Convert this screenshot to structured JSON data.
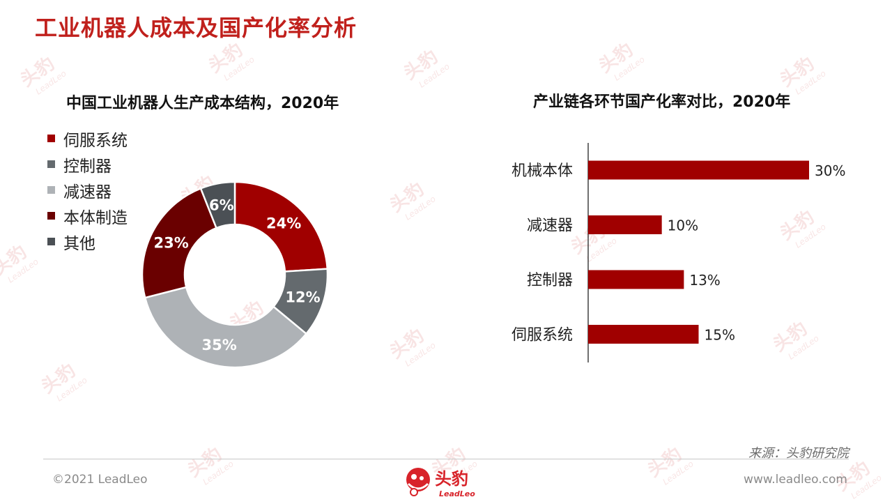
{
  "slide_title": "工业机器人成本及国产化率分析",
  "watermark": {
    "cn": "头豹",
    "en": "LeadLeo"
  },
  "colors": {
    "title_red": "#c0201c",
    "servo": "#a00000",
    "controller": "#646a6e",
    "reducer": "#aeb2b6",
    "body": "#6a0000",
    "other": "#4b5055",
    "bar": "#a00000"
  },
  "chart_data": [
    {
      "type": "pie",
      "title": "中国工业机器人生产成本结构，2020年",
      "legend_position": "left",
      "legend": [
        "伺服系统",
        "控制器",
        "减速器",
        "本体制造",
        "其他"
      ],
      "categories": [
        "伺服系统",
        "控制器",
        "减速器",
        "本体制造",
        "其他"
      ],
      "values": [
        24,
        12,
        35,
        23,
        6
      ],
      "value_labels": [
        "24%",
        "12%",
        "35%",
        "23%",
        "6%"
      ],
      "donut": true
    },
    {
      "type": "bar",
      "orientation": "horizontal",
      "title": "产业链各环节国产化率对比，2020年",
      "categories": [
        "机械本体",
        "减速器",
        "控制器",
        "伺服系统"
      ],
      "values": [
        30,
        10,
        13,
        15
      ],
      "value_labels": [
        "30%",
        "10%",
        "13%",
        "15%"
      ],
      "xlim": [
        0,
        30
      ]
    }
  ],
  "footer": {
    "source": "来源：头豹研究院",
    "copyright": "©2021 LeadLeo",
    "website": "www.leadleo.com",
    "logo_cn": "头豹",
    "logo_en": "LeadLeo"
  }
}
